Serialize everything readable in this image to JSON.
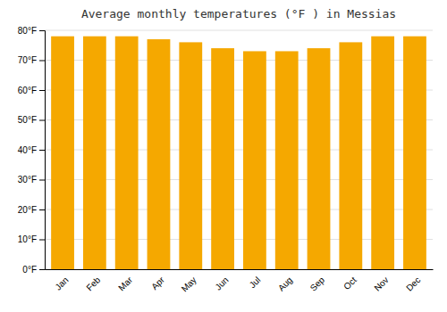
{
  "chart_data": {
    "type": "bar",
    "title": "Average monthly temperatures (°F ) in Messias",
    "categories": [
      "Jan",
      "Feb",
      "Mar",
      "Apr",
      "May",
      "Jun",
      "Jul",
      "Aug",
      "Sep",
      "Oct",
      "Nov",
      "Dec"
    ],
    "values": [
      78,
      78,
      78,
      77,
      76,
      74,
      73,
      73,
      74,
      76,
      78,
      78
    ],
    "color": "#F5A800",
    "ylim": [
      0,
      80
    ],
    "yticks": [
      {
        "value": 0,
        "label": "0°F"
      },
      {
        "value": 10,
        "label": "10°F"
      },
      {
        "value": 20,
        "label": "20°F"
      },
      {
        "value": 30,
        "label": "30°F"
      },
      {
        "value": 40,
        "label": "40°F"
      },
      {
        "value": 50,
        "label": "50°F"
      },
      {
        "value": 60,
        "label": "60°F"
      },
      {
        "value": 70,
        "label": "70°F"
      },
      {
        "value": 80,
        "label": "80°F"
      }
    ],
    "grid": true
  }
}
